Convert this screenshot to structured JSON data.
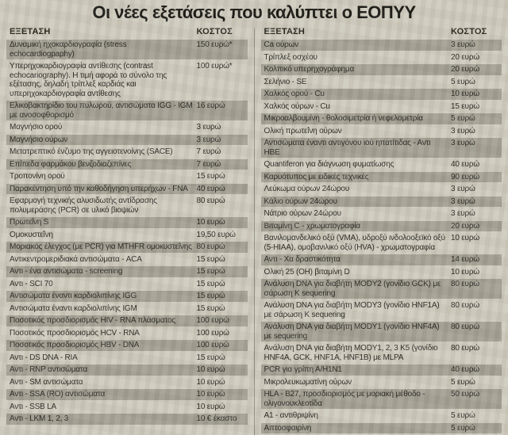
{
  "title": "Οι νέες εξετάσεις που καλύπτει ο ΕΟΠΥΥ",
  "table": {
    "exam_header": "ΕΞΕΤΑΣΗ",
    "cost_header": "ΚΟΣΤΟΣ"
  },
  "colors": {
    "page_bg": "#cdc9bc",
    "row_shaded": "#a19e91",
    "ink": "#26251f",
    "divider": "#8e8c80"
  },
  "columns": [
    {
      "rows": [
        {
          "name": "Δυναμική ηχοκαρδιογραφία (stress echocardiogpaphy)",
          "cost": "150 ευρώ*",
          "shaded": true
        },
        {
          "name": "Υπερηχοκαρδιογραφία αντίθεσης (contrast echocariography). Η τιμή αφορά το σύνολο της εξέτασης, δηλαδή τρίπλεξ καρδιάς και υπερηχοκαρδιογραφία αντίθεσης",
          "cost": "100 ευρώ*",
          "shaded": false
        },
        {
          "name": "Ελικοβακτηρίδιο του πυλωρού, αντισώματα IGG - IGM με ανοσοφθορισμό",
          "cost": "16 ευρώ",
          "shaded": true
        },
        {
          "name": "Μαγνήσιο ορού",
          "cost": "3 ευρώ",
          "shaded": false
        },
        {
          "name": "Μαγνήσιο ούρων",
          "cost": "3 ευρώ",
          "shaded": true
        },
        {
          "name": "Μετατρεπτικό ένζυμο της αγγειοτενοίνης (SACE)",
          "cost": "7 ευρώ",
          "shaded": false
        },
        {
          "name": "Επίπεδα φαρμάκου βενζοδιαζεπίνες",
          "cost": "7 ευρώ",
          "shaded": true
        },
        {
          "name": "Τροπονίνη ορού",
          "cost": "15 ευρώ",
          "shaded": false
        },
        {
          "name": "Παρακέντηση υπό την καθοδήγηση υπερήχων - FNA",
          "cost": "40 ευρώ",
          "shaded": true
        },
        {
          "name": "Εφαρμογή τεχνικής αλυσιδωτής αντίδρασης πολυμεράσης (PCR) σε υλικό βιοψιών",
          "cost": "80 ευρώ",
          "shaded": false
        },
        {
          "name": "Πρωτεΐνη S",
          "cost": "10 ευρώ",
          "shaded": true
        },
        {
          "name": "Ομοκυστεΐνη",
          "cost": "19,50 ευρώ",
          "shaded": false
        },
        {
          "name": "Μοριακός έλεγχος (με PCR) για MTHFR ομοκυστεΐνης",
          "cost": "80 ευρώ",
          "shaded": true
        },
        {
          "name": "Αντικεντρομεριδιακά αντισώματα - ACA",
          "cost": "15 ευρώ",
          "shaded": false
        },
        {
          "name": "Αντι - ένα αντισώματα - screening",
          "cost": "15 ευρώ",
          "shaded": true
        },
        {
          "name": "Αντι - SCI 70",
          "cost": "15 ευρώ",
          "shaded": false
        },
        {
          "name": "Αντισώματα έναντι καρδιολιπίνης IGG",
          "cost": "15 ευρώ",
          "shaded": true
        },
        {
          "name": "Αντισώματα έναντι καρδιολιπίνης IGM",
          "cost": "15 ευρώ",
          "shaded": false
        },
        {
          "name": "Ποσοτικός προσδιορισμός HIV - RNA πλάσματος",
          "cost": "100 ευρώ",
          "shaded": true
        },
        {
          "name": "Ποσοτικός προσδιορισμός HCV - RNA",
          "cost": "100 ευρώ",
          "shaded": false
        },
        {
          "name": "Ποσοτικός προσδιορισμός HBV - DNA",
          "cost": "100 ευρώ",
          "shaded": true
        },
        {
          "name": "Αντι - DS DNA - RIA",
          "cost": "15 ευρώ",
          "shaded": false
        },
        {
          "name": "Αντι - RNP αντισώματα",
          "cost": "10 ευρώ",
          "shaded": true
        },
        {
          "name": "Αντι - SM αντισώματα",
          "cost": "10 ευρώ",
          "shaded": false
        },
        {
          "name": "Αντι - SSA (RO) αντισώματα",
          "cost": "10 ευρώ",
          "shaded": true
        },
        {
          "name": "Αντι - SSB LA",
          "cost": "10 ευρώ",
          "shaded": false
        },
        {
          "name": "Αντι - LKM 1, 2, 3",
          "cost": "10 € έκαστο",
          "shaded": true
        }
      ]
    },
    {
      "rows": [
        {
          "name": "Ca ούρων",
          "cost": "3 ευρώ",
          "shaded": true
        },
        {
          "name": "Τρίπλεξ οσχέου",
          "cost": "20 ευρώ",
          "shaded": false
        },
        {
          "name": "Κολπικό υπερηχογράφημα",
          "cost": "20 ευρώ",
          "shaded": true
        },
        {
          "name": "Σελήνιο - SE",
          "cost": "5 ευρώ",
          "shaded": false
        },
        {
          "name": "Χαλκός ορού - Cu",
          "cost": "10 ευρώ",
          "shaded": true
        },
        {
          "name": "Χαλκός ούρων - Cu",
          "cost": "15 ευρώ",
          "shaded": false
        },
        {
          "name": "Μικροαλβουμίνη - θολοσιμετρία ή νεφελομετρία",
          "cost": "5 ευρώ",
          "shaded": true
        },
        {
          "name": "Ολική πρωτεΐνη ούρων",
          "cost": "3 ευρώ",
          "shaded": false
        },
        {
          "name": "Αντισώματα έναντι αντιγόνου ιού ηπατίτιδας - Αντι HBE",
          "cost": "3 ευρώ",
          "shaded": true
        },
        {
          "name": "Quantiferon για διάγνωση φυματίωσης",
          "cost": "40 ευρώ",
          "shaded": false
        },
        {
          "name": "Καρυότυπος με ειδικές τεχνικές",
          "cost": "90 ευρώ",
          "shaded": true
        },
        {
          "name": "Λεύκωμα ούρων 24ώρου",
          "cost": "3 ευρώ",
          "shaded": false
        },
        {
          "name": "Κάλιο ούρων 24ώρου",
          "cost": "3 ευρώ",
          "shaded": true
        },
        {
          "name": "Νάτριο ούρων 24ώρου",
          "cost": "3 ευρώ",
          "shaded": false
        },
        {
          "name": "Βιταμίνη C - χρωματογραφία",
          "cost": "20 ευρώ",
          "shaded": true
        },
        {
          "name": "Βανιλομανδελικό οξύ (VMA), υδροξύ ινδολοοξεϊκό οξύ (5-HIAA), ομοβανιλικό οξύ (HVA) - χρωματογραφία",
          "cost": "10 ευρώ",
          "shaded": false
        },
        {
          "name": "Αντι - Χα δραστικότητα",
          "cost": "14 ευρώ",
          "shaded": true
        },
        {
          "name": "Ολική 25 (OH) βιταμίνη D",
          "cost": "10 ευρώ",
          "shaded": false
        },
        {
          "name": "Ανάλυση DNA για διαβήτη MODY2 (γονίδιο GCK) με σάρωση K sequering",
          "cost": "80 ευρώ",
          "shaded": true
        },
        {
          "name": "Ανάλυση DNA για διαβήτη MODY3 (γονίδιο HNF1A) με σάρωση K sequering",
          "cost": "80 ευρώ",
          "shaded": false
        },
        {
          "name": "Ανάλυση DNA για διαβήτη MODY1 (γονίδιο HNF4A) με sequering",
          "cost": "80 ευρώ",
          "shaded": true
        },
        {
          "name": "Ανάλυση DNA για διαβήτη MODY1, 2, 3 K5 (γονίδιο HNF4A, GCK, HNF1A, HNF1B) με MLPA",
          "cost": "80 ευρώ",
          "shaded": false
        },
        {
          "name": "PCR για γρίπη Α/Η1Ν1",
          "cost": "40 ευρώ",
          "shaded": true
        },
        {
          "name": "Μικρολευκωματίνη ούρων",
          "cost": "5 ευρώ",
          "shaded": false
        },
        {
          "name": "HLA - B27, προσδιορισμός με μοριακή μέθοδο - ολιγονουκλεοτίδα",
          "cost": "50 ευρώ",
          "shaded": true
        },
        {
          "name": "A1 - αντιθριψίνη",
          "cost": "5 ευρώ",
          "shaded": false
        },
        {
          "name": "Απτοσφαιρίνη",
          "cost": "5 ευρώ",
          "shaded": true
        }
      ]
    }
  ]
}
